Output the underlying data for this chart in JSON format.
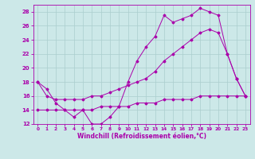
{
  "xlabel": "Windchill (Refroidissement éolien,°C)",
  "xlim": [
    -0.5,
    23.5
  ],
  "ylim": [
    12,
    29
  ],
  "yticks": [
    12,
    14,
    16,
    18,
    20,
    22,
    24,
    26,
    28
  ],
  "xticks": [
    0,
    1,
    2,
    3,
    4,
    5,
    6,
    7,
    8,
    9,
    10,
    11,
    12,
    13,
    14,
    15,
    16,
    17,
    18,
    19,
    20,
    21,
    22,
    23
  ],
  "bg_color": "#cce8e8",
  "grid_color": "#aacece",
  "line_color": "#aa00aa",
  "line1_x": [
    0,
    1,
    2,
    3,
    4,
    5,
    6,
    7,
    8,
    9,
    10,
    11,
    12,
    13,
    14,
    15,
    16,
    17,
    18,
    19,
    20,
    21,
    22,
    23
  ],
  "line1_y": [
    18,
    17,
    15,
    14,
    13,
    14,
    12,
    12,
    13,
    14.5,
    18,
    21,
    23,
    24.5,
    27.5,
    26.5,
    27,
    27.5,
    28.5,
    28,
    27.5,
    22,
    18.5,
    16
  ],
  "line2_x": [
    0,
    1,
    2,
    3,
    4,
    5,
    6,
    7,
    8,
    9,
    10,
    11,
    12,
    13,
    14,
    15,
    16,
    17,
    18,
    19,
    20,
    21,
    22,
    23
  ],
  "line2_y": [
    18,
    16,
    15.5,
    15.5,
    15.5,
    15.5,
    16,
    16,
    16.5,
    17,
    17.5,
    18,
    18.5,
    19.5,
    21,
    22,
    23,
    24,
    25,
    25.5,
    25,
    22,
    18.5,
    16
  ],
  "line3_x": [
    0,
    1,
    2,
    3,
    4,
    5,
    6,
    7,
    8,
    9,
    10,
    11,
    12,
    13,
    14,
    15,
    16,
    17,
    18,
    19,
    20,
    21,
    22,
    23
  ],
  "line3_y": [
    14,
    14,
    14,
    14,
    14,
    14,
    14,
    14.5,
    14.5,
    14.5,
    14.5,
    15,
    15,
    15,
    15.5,
    15.5,
    15.5,
    15.5,
    16,
    16,
    16,
    16,
    16,
    16
  ]
}
